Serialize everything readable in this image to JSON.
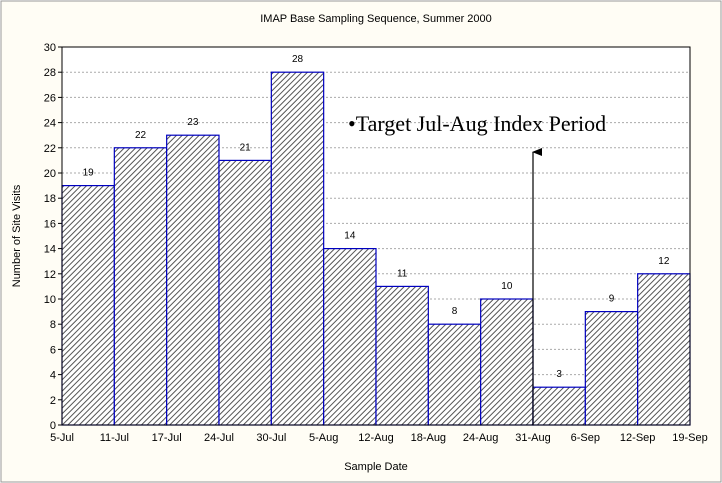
{
  "chart_data": {
    "type": "histogram",
    "title": "IMAP Base Sampling Sequence, Summer 2000",
    "x_label": "Sample Date",
    "y_label": "Number of Site Visits",
    "bins": [
      "5-Jul",
      "11-Jul",
      "17-Jul",
      "24-Jul",
      "30-Jul",
      "5-Aug",
      "12-Aug",
      "18-Aug",
      "24-Aug",
      "31-Aug",
      "6-Sep",
      "12-Sep",
      "19-Sep"
    ],
    "values": [
      19,
      22,
      23,
      21,
      28,
      14,
      11,
      8,
      10,
      3,
      9,
      12
    ],
    "color": "#0000c0",
    "ylim": [
      0,
      30
    ],
    "yticks": [
      0,
      2,
      4,
      6,
      8,
      10,
      12,
      14,
      16,
      18,
      20,
      22,
      24,
      26,
      28,
      30
    ],
    "grid": true,
    "annotation": "•Target Jul-Aug Index Period"
  }
}
